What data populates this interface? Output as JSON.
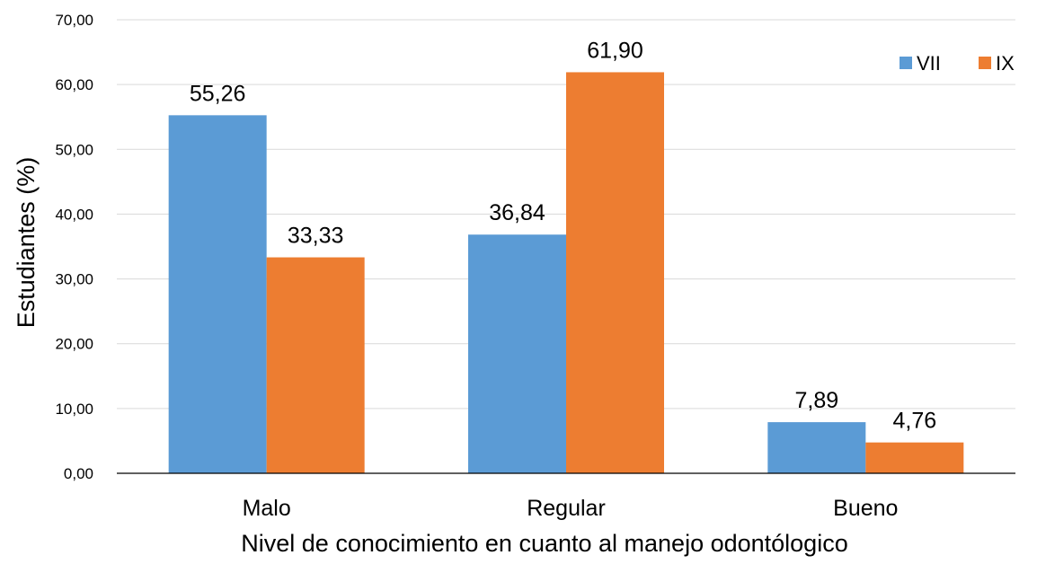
{
  "chart_data": {
    "type": "bar",
    "categories": [
      "Malo",
      "Regular",
      "Bueno"
    ],
    "series": [
      {
        "name": "VII",
        "values": [
          55.26,
          36.84,
          7.89
        ],
        "value_labels": [
          "55,26",
          "36,84",
          "7,89"
        ],
        "color": "#5b9bd5"
      },
      {
        "name": "IX",
        "values": [
          33.33,
          61.9,
          4.76
        ],
        "value_labels": [
          "33,33",
          "61,90",
          "4,76"
        ],
        "color": "#ed7d31"
      }
    ],
    "xlabel": "Nivel de conocimiento en cuanto al manejo odontólogico",
    "ylabel": "Estudiantes  (%)",
    "ylim": [
      0,
      70
    ],
    "yticks": [
      0,
      10,
      20,
      30,
      40,
      50,
      60,
      70
    ],
    "ytick_labels": [
      "0,00",
      "10,00",
      "20,00",
      "30,00",
      "40,00",
      "50,00",
      "60,00",
      "70,00"
    ],
    "grid": true,
    "legend_position": "top-right",
    "gridline_color": "#d9d9d9",
    "axis_color": "#000000"
  }
}
